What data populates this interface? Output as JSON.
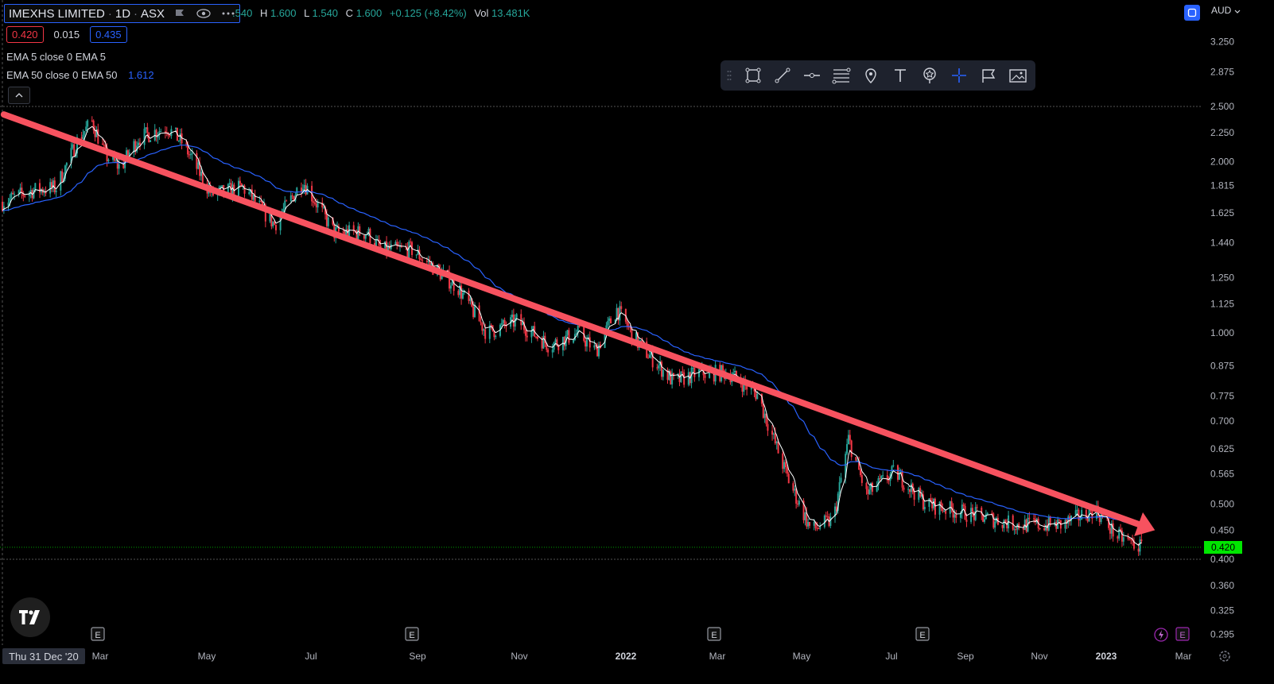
{
  "symbol": {
    "name": "IMEXHS LIMITED",
    "interval": "1D",
    "exchange": "ASX"
  },
  "ohlc": {
    "o_label": "",
    "o_value": ".540",
    "h_label": "H",
    "h_value": "1.600",
    "l_label": "L",
    "l_value": "1.540",
    "c_label": "C",
    "c_value": "1.600",
    "change": "+0.125 (+8.42%)",
    "vol_label": "Vol",
    "vol_value": "13.481K"
  },
  "quote": {
    "bid": "0.420",
    "spread": "0.015",
    "ask": "0.435"
  },
  "indicators": [
    {
      "label": "EMA 5 close 0 EMA 5",
      "value": ""
    },
    {
      "label": "EMA 50 close 0 EMA 50",
      "value": "1.612"
    }
  ],
  "currency": "AUD",
  "crosshair_date": "Thu 31 Dec '20",
  "last_price_tag": "0.420",
  "colors": {
    "up": "#26a69a",
    "down": "#f23645",
    "ema5": "#ffffff",
    "ema50": "#2962ff",
    "trendline": "#f7525f",
    "last_price": "#00e600",
    "background": "#000000"
  },
  "drawing_toolbar": [
    "rectangle-icon",
    "trend-line-icon",
    "horizontal-ray-icon",
    "fib-icon",
    "price-note-icon",
    "text-icon",
    "emoji-icon",
    "crosshair-icon",
    "flag-icon",
    "image-icon"
  ],
  "chart_data": {
    "type": "candlestick",
    "y_scale": "log",
    "yticks": [
      "3.250",
      "2.875",
      "2.500",
      "2.250",
      "2.000",
      "1.815",
      "1.625",
      "1.440",
      "1.250",
      "1.125",
      "1.000",
      "0.875",
      "0.775",
      "0.700",
      "0.625",
      "0.565",
      "0.500",
      "0.450",
      "0.400",
      "0.360",
      "0.325",
      "0.295"
    ],
    "xticks": [
      "Mar",
      "May",
      "Jul",
      "Sep",
      "Nov",
      "2022",
      "Mar",
      "May",
      "Jul",
      "Sep",
      "Nov",
      "2023",
      "Mar"
    ],
    "x_bold": [
      "2022",
      "2023"
    ],
    "earnings_markers": [
      "E",
      "E",
      "E",
      "E",
      "E"
    ],
    "horizontal_lines": [
      2.5,
      0.4
    ],
    "last_price": 0.42,
    "price_path": [
      [
        "2020-12-31",
        1.7
      ],
      [
        "2021-01-20",
        1.78
      ],
      [
        "2021-02-05",
        1.8
      ],
      [
        "2021-02-20",
        2.2
      ],
      [
        "2021-03-01",
        2.35
      ],
      [
        "2021-03-10",
        2.05
      ],
      [
        "2021-03-20",
        1.95
      ],
      [
        "2021-04-01",
        2.2
      ],
      [
        "2021-04-20",
        2.3
      ],
      [
        "2021-05-01",
        2.15
      ],
      [
        "2021-05-20",
        1.75
      ],
      [
        "2021-06-10",
        1.8
      ],
      [
        "2021-07-01",
        1.55
      ],
      [
        "2021-07-20",
        1.85
      ],
      [
        "2021-08-10",
        1.5
      ],
      [
        "2021-09-01",
        1.5
      ],
      [
        "2021-09-10",
        1.4
      ],
      [
        "2021-10-01",
        1.4
      ],
      [
        "2021-11-01",
        1.2
      ],
      [
        "2021-11-20",
        1.0
      ],
      [
        "2021-12-10",
        1.05
      ],
      [
        "2022-01-01",
        0.95
      ],
      [
        "2022-01-20",
        1.0
      ],
      [
        "2022-02-01",
        0.93
      ],
      [
        "2022-02-15",
        1.1
      ],
      [
        "2022-03-01",
        0.96
      ],
      [
        "2022-03-25",
        0.82
      ],
      [
        "2022-04-10",
        0.85
      ],
      [
        "2022-05-01",
        0.85
      ],
      [
        "2022-05-20",
        0.78
      ],
      [
        "2022-06-10",
        0.55
      ],
      [
        "2022-06-25",
        0.45
      ],
      [
        "2022-07-10",
        0.47
      ],
      [
        "2022-07-20",
        0.65
      ],
      [
        "2022-08-01",
        0.52
      ],
      [
        "2022-08-20",
        0.57
      ],
      [
        "2022-09-10",
        0.5
      ],
      [
        "2022-10-10",
        0.48
      ],
      [
        "2022-11-10",
        0.46
      ],
      [
        "2022-12-10",
        0.46
      ],
      [
        "2023-01-01",
        0.49
      ],
      [
        "2023-01-15",
        0.44
      ],
      [
        "2023-02-01",
        0.42
      ]
    ],
    "trendline": [
      [
        "2021-01-01",
        2.42
      ],
      [
        "2023-02-10",
        0.45
      ]
    ]
  }
}
